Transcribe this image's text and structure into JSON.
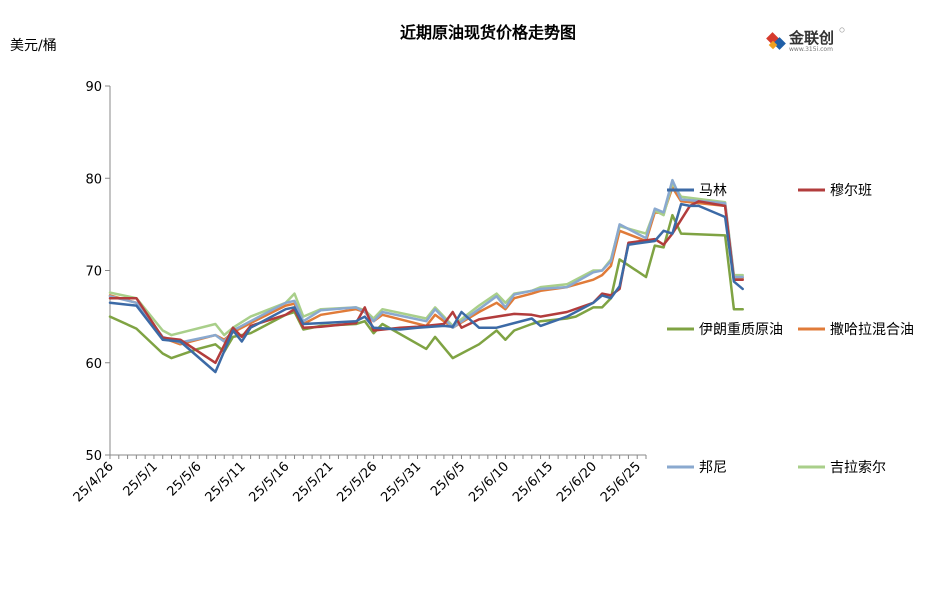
{
  "chart_data": {
    "type": "line",
    "title": "近期原油现货价格走势图",
    "ylabel": "美元/桶",
    "ylim": [
      50,
      90
    ],
    "yticks": [
      50,
      60,
      70,
      80,
      90
    ],
    "x": [
      "25/4/26",
      "25/4/27",
      "25/4/28",
      "25/4/29",
      "25/4/30",
      "25/5/1",
      "25/5/2",
      "25/5/3",
      "25/5/4",
      "25/5/5",
      "25/5/6",
      "25/5/7",
      "25/5/8",
      "25/5/9",
      "25/5/10",
      "25/5/11",
      "25/5/12",
      "25/5/13",
      "25/5/14",
      "25/5/15",
      "25/5/16",
      "25/5/17",
      "25/5/18",
      "25/5/19",
      "25/5/20",
      "25/5/21",
      "25/5/22",
      "25/5/23",
      "25/5/24",
      "25/5/25",
      "25/5/26",
      "25/5/27",
      "25/5/28",
      "25/5/29",
      "25/5/30",
      "25/5/31",
      "25/6/1",
      "25/6/2",
      "25/6/3",
      "25/6/4",
      "25/6/5",
      "25/6/6",
      "25/6/7",
      "25/6/8",
      "25/6/9",
      "25/6/10",
      "25/6/11",
      "25/6/12",
      "25/6/13",
      "25/6/14",
      "25/6/15",
      "25/6/16",
      "25/6/17",
      "25/6/18",
      "25/6/19",
      "25/6/20",
      "25/6/21",
      "25/6/22",
      "25/6/23",
      "25/6/24",
      "25/6/25",
      "25/6/26"
    ],
    "xtick_labels": [
      "25/4/26",
      "25/5/1",
      "25/5/6",
      "25/5/11",
      "25/5/16",
      "25/5/21",
      "25/5/26",
      "25/5/31",
      "25/6/5",
      "25/6/10",
      "25/6/15",
      "25/6/20",
      "25/6/25"
    ],
    "legend": "right",
    "grid": false,
    "series": [
      {
        "name": "马林",
        "color": "#3c6aa6",
        "values": [
          [
            0,
            66.5
          ],
          [
            3,
            66.2
          ],
          [
            6,
            62.5
          ],
          [
            8,
            62.3
          ],
          [
            12,
            59.0
          ],
          [
            14,
            63.5
          ],
          [
            15,
            62.3
          ],
          [
            16,
            63.8
          ],
          [
            20,
            65.8
          ],
          [
            21,
            66.0
          ],
          [
            22,
            64.2
          ],
          [
            24,
            64.3
          ],
          [
            28,
            64.5
          ],
          [
            29,
            65.0
          ],
          [
            30,
            63.8
          ],
          [
            33,
            63.6
          ],
          [
            35,
            63.8
          ],
          [
            38,
            64.0
          ],
          [
            39,
            63.9
          ],
          [
            40,
            65.5
          ],
          [
            42,
            63.8
          ],
          [
            44,
            63.8
          ],
          [
            48,
            64.8
          ],
          [
            49,
            64.0
          ],
          [
            52,
            65.0
          ],
          [
            55,
            66.5
          ],
          [
            56,
            67.3
          ],
          [
            57,
            67.0
          ],
          [
            58,
            68.3
          ],
          [
            59,
            72.8
          ],
          [
            62,
            73.2
          ],
          [
            63,
            74.3
          ],
          [
            64,
            74.0
          ],
          [
            65,
            77.2
          ],
          [
            66,
            77.0
          ],
          [
            67,
            77.0
          ],
          [
            70,
            75.8
          ],
          [
            71,
            68.8
          ],
          [
            72,
            68.0
          ]
        ]
      },
      {
        "name": "穆尔班",
        "color": "#b23c3c",
        "values": [
          [
            0,
            67.0
          ],
          [
            3,
            67.0
          ],
          [
            6,
            62.7
          ],
          [
            8,
            62.5
          ],
          [
            12,
            60.0
          ],
          [
            14,
            63.8
          ],
          [
            15,
            62.8
          ],
          [
            16,
            64.0
          ],
          [
            20,
            65.2
          ],
          [
            21,
            65.8
          ],
          [
            22,
            63.8
          ],
          [
            24,
            63.9
          ],
          [
            28,
            64.3
          ],
          [
            29,
            66.0
          ],
          [
            30,
            63.5
          ],
          [
            33,
            63.8
          ],
          [
            35,
            63.9
          ],
          [
            38,
            64.2
          ],
          [
            39,
            65.5
          ],
          [
            40,
            63.8
          ],
          [
            42,
            64.7
          ],
          [
            44,
            65.0
          ],
          [
            46,
            65.3
          ],
          [
            48,
            65.2
          ],
          [
            49,
            65.0
          ],
          [
            52,
            65.5
          ],
          [
            55,
            66.5
          ],
          [
            56,
            67.5
          ],
          [
            57,
            67.3
          ],
          [
            58,
            68.0
          ],
          [
            59,
            73.0
          ],
          [
            62,
            73.4
          ],
          [
            63,
            72.8
          ],
          [
            64,
            74.0
          ],
          [
            65,
            75.5
          ],
          [
            66,
            77.0
          ],
          [
            67,
            77.5
          ],
          [
            70,
            77.0
          ],
          [
            71,
            69.0
          ],
          [
            72,
            69.0
          ]
        ]
      },
      {
        "name": "伊朗重质原油",
        "color": "#7fa343",
        "values": [
          [
            0,
            65.0
          ],
          [
            3,
            63.7
          ],
          [
            6,
            61.0
          ],
          [
            7,
            60.5
          ],
          [
            10,
            61.5
          ],
          [
            12,
            62.0
          ],
          [
            13,
            61.2
          ],
          [
            14,
            62.8
          ],
          [
            16,
            63.2
          ],
          [
            20,
            65.2
          ],
          [
            21,
            65.5
          ],
          [
            22,
            63.6
          ],
          [
            24,
            64.0
          ],
          [
            28,
            64.2
          ],
          [
            29,
            64.5
          ],
          [
            30,
            63.2
          ],
          [
            31,
            64.2
          ],
          [
            36,
            61.5
          ],
          [
            37,
            62.8
          ],
          [
            39,
            60.5
          ],
          [
            42,
            62.0
          ],
          [
            44,
            63.5
          ],
          [
            45,
            62.5
          ],
          [
            46,
            63.5
          ],
          [
            48,
            64.2
          ],
          [
            49,
            64.5
          ],
          [
            52,
            64.8
          ],
          [
            53,
            65.0
          ],
          [
            55,
            66.0
          ],
          [
            56,
            66.0
          ],
          [
            57,
            67.0
          ],
          [
            58,
            71.2
          ],
          [
            61,
            69.3
          ],
          [
            62,
            72.7
          ],
          [
            63,
            72.5
          ],
          [
            64,
            76.0
          ],
          [
            65,
            74.0
          ],
          [
            70,
            73.8
          ],
          [
            71,
            65.8
          ],
          [
            72,
            65.8
          ]
        ]
      },
      {
        "name": "撒哈拉混合油",
        "color": "#e07b39",
        "values": [
          [
            0,
            67.3
          ],
          [
            3,
            66.5
          ],
          [
            6,
            62.7
          ],
          [
            8,
            62.0
          ],
          [
            12,
            63.0
          ],
          [
            13,
            62.5
          ],
          [
            14,
            63.3
          ],
          [
            16,
            64.3
          ],
          [
            20,
            66.2
          ],
          [
            21,
            66.4
          ],
          [
            22,
            64.2
          ],
          [
            24,
            65.2
          ],
          [
            28,
            65.8
          ],
          [
            29,
            65.5
          ],
          [
            30,
            64.5
          ],
          [
            31,
            65.2
          ],
          [
            36,
            64.0
          ],
          [
            37,
            65.2
          ],
          [
            39,
            63.8
          ],
          [
            42,
            65.5
          ],
          [
            44,
            66.5
          ],
          [
            45,
            65.8
          ],
          [
            46,
            67.0
          ],
          [
            48,
            67.5
          ],
          [
            49,
            67.8
          ],
          [
            52,
            68.2
          ],
          [
            55,
            69.0
          ],
          [
            56,
            69.5
          ],
          [
            57,
            70.5
          ],
          [
            58,
            74.3
          ],
          [
            61,
            73.2
          ],
          [
            62,
            76.3
          ],
          [
            63,
            76.2
          ],
          [
            64,
            79.0
          ],
          [
            65,
            77.5
          ],
          [
            70,
            77.0
          ],
          [
            71,
            69.2
          ],
          [
            72,
            69.2
          ]
        ]
      },
      {
        "name": "邦尼",
        "color": "#8aa9cf",
        "values": [
          [
            0,
            67.2
          ],
          [
            3,
            66.5
          ],
          [
            6,
            62.8
          ],
          [
            8,
            62.2
          ],
          [
            12,
            63.0
          ],
          [
            13,
            62.3
          ],
          [
            14,
            63.5
          ],
          [
            16,
            64.5
          ],
          [
            20,
            66.5
          ],
          [
            21,
            66.7
          ],
          [
            22,
            64.5
          ],
          [
            24,
            65.7
          ],
          [
            28,
            66.0
          ],
          [
            29,
            65.5
          ],
          [
            30,
            64.5
          ],
          [
            31,
            65.5
          ],
          [
            36,
            64.5
          ],
          [
            37,
            65.8
          ],
          [
            39,
            63.8
          ],
          [
            42,
            65.8
          ],
          [
            44,
            67.2
          ],
          [
            45,
            66.0
          ],
          [
            46,
            67.4
          ],
          [
            48,
            67.8
          ],
          [
            49,
            68.0
          ],
          [
            52,
            68.2
          ],
          [
            55,
            69.8
          ],
          [
            56,
            70.0
          ],
          [
            57,
            71.0
          ],
          [
            58,
            75.0
          ],
          [
            61,
            73.5
          ],
          [
            62,
            76.7
          ],
          [
            63,
            76.3
          ],
          [
            64,
            79.8
          ],
          [
            65,
            77.7
          ],
          [
            70,
            77.3
          ],
          [
            71,
            69.3
          ],
          [
            72,
            69.3
          ]
        ]
      },
      {
        "name": "吉拉索尔",
        "color": "#a9cf8a",
        "values": [
          [
            0,
            67.6
          ],
          [
            3,
            67.0
          ],
          [
            6,
            63.5
          ],
          [
            7,
            63.0
          ],
          [
            12,
            64.2
          ],
          [
            13,
            63.0
          ],
          [
            14,
            63.8
          ],
          [
            16,
            65.0
          ],
          [
            20,
            66.5
          ],
          [
            21,
            67.5
          ],
          [
            22,
            65.0
          ],
          [
            24,
            65.8
          ],
          [
            28,
            66.0
          ],
          [
            29,
            65.7
          ],
          [
            30,
            64.8
          ],
          [
            31,
            65.8
          ],
          [
            36,
            64.8
          ],
          [
            37,
            66.0
          ],
          [
            39,
            64.0
          ],
          [
            42,
            66.2
          ],
          [
            44,
            67.5
          ],
          [
            45,
            66.5
          ],
          [
            46,
            67.5
          ],
          [
            48,
            67.8
          ],
          [
            49,
            68.2
          ],
          [
            52,
            68.5
          ],
          [
            55,
            70.0
          ],
          [
            56,
            70.0
          ],
          [
            57,
            71.2
          ],
          [
            58,
            74.8
          ],
          [
            61,
            74.0
          ],
          [
            62,
            76.5
          ],
          [
            63,
            76.0
          ],
          [
            64,
            79.5
          ],
          [
            65,
            78.0
          ],
          [
            70,
            77.4
          ],
          [
            71,
            69.5
          ],
          [
            72,
            69.5
          ]
        ]
      }
    ]
  }
}
